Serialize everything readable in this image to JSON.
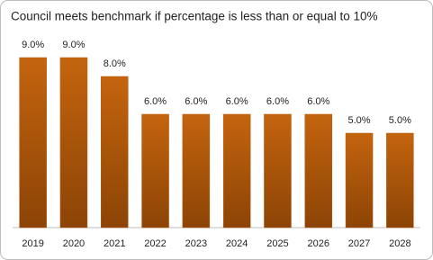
{
  "chart_data": {
    "type": "bar",
    "title": "Council meets benchmark if percentage is less than or equal to 10%",
    "categories": [
      "2019",
      "2020",
      "2021",
      "2022",
      "2023",
      "2024",
      "2025",
      "2026",
      "2027",
      "2028"
    ],
    "values": [
      9,
      9,
      8,
      6,
      6,
      6,
      6,
      6,
      5,
      5
    ],
    "value_labels": [
      "9.0%",
      "9.0%",
      "8.0%",
      "6.0%",
      "6.0%",
      "6.0%",
      "6.0%",
      "6.0%",
      "5.0%",
      "5.0%"
    ],
    "color": "#b85a0c",
    "ylim": [
      0,
      10
    ]
  }
}
